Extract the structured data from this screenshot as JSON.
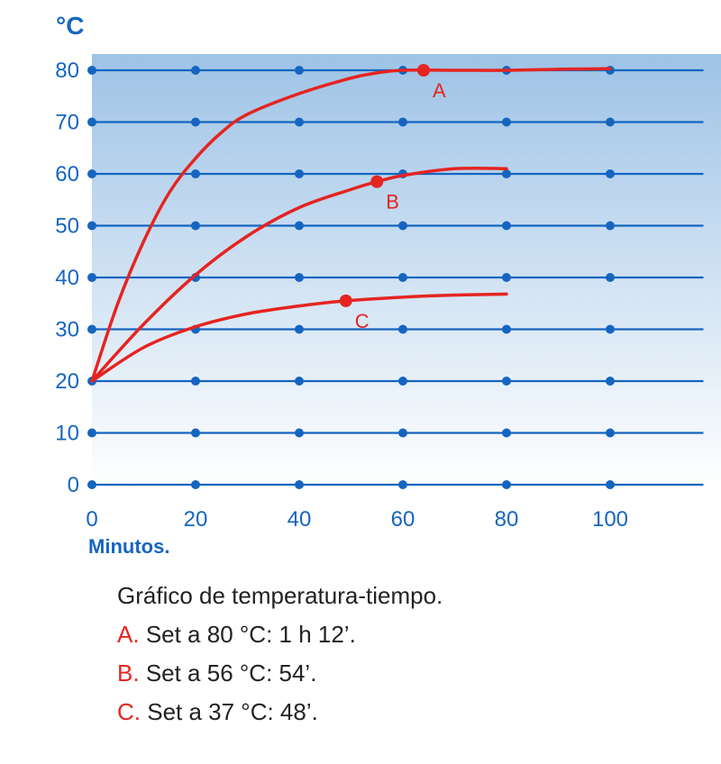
{
  "chart_data": {
    "type": "line",
    "ylabel": "°C",
    "xlabel": "Minutos.",
    "xlim": [
      0,
      118
    ],
    "ylim": [
      0,
      82
    ],
    "x_ticks": [
      0,
      20,
      40,
      60,
      80,
      100
    ],
    "y_ticks": [
      0,
      10,
      20,
      30,
      40,
      50,
      60,
      70,
      80
    ],
    "grid": true,
    "series": [
      {
        "name": "A",
        "color": "#e52421",
        "points": [
          [
            0,
            20
          ],
          [
            5,
            35
          ],
          [
            10,
            47
          ],
          [
            15,
            56.5
          ],
          [
            20,
            63
          ],
          [
            25,
            68
          ],
          [
            30,
            71.5
          ],
          [
            40,
            75.5
          ],
          [
            50,
            78.5
          ],
          [
            55,
            79.5
          ],
          [
            60,
            80
          ],
          [
            70,
            80
          ],
          [
            80,
            80
          ],
          [
            90,
            80.2
          ],
          [
            100,
            80.3
          ]
        ],
        "marker": {
          "x": 64,
          "y": 80
        }
      },
      {
        "name": "B",
        "color": "#e52421",
        "points": [
          [
            0,
            20
          ],
          [
            10,
            31
          ],
          [
            20,
            40.5
          ],
          [
            30,
            48
          ],
          [
            40,
            53.5
          ],
          [
            50,
            57
          ],
          [
            55,
            58.5
          ],
          [
            60,
            59.7
          ],
          [
            70,
            61
          ],
          [
            80,
            61
          ]
        ],
        "marker": {
          "x": 55,
          "y": 58.5
        }
      },
      {
        "name": "C",
        "color": "#e52421",
        "points": [
          [
            0,
            20
          ],
          [
            10,
            26.5
          ],
          [
            20,
            30.5
          ],
          [
            30,
            33
          ],
          [
            40,
            34.5
          ],
          [
            49,
            35.5
          ],
          [
            60,
            36.2
          ],
          [
            70,
            36.6
          ],
          [
            80,
            36.8
          ]
        ],
        "marker": {
          "x": 49,
          "y": 35.5
        }
      }
    ]
  },
  "caption": {
    "title": "Gráfico de temperatura-tiempo.",
    "lines": [
      {
        "letter": "A.",
        "text": "Set a 80 °C: 1 h 12’."
      },
      {
        "letter": "B.",
        "text": "Set a 56 °C: 54’."
      },
      {
        "letter": "C.",
        "text": "Set a 37 °C: 48’."
      }
    ]
  },
  "colors": {
    "axis": "#1565c0",
    "curve": "#e52421",
    "bg_top": "#9ec3e6",
    "bg_bottom": "#ffffff"
  }
}
